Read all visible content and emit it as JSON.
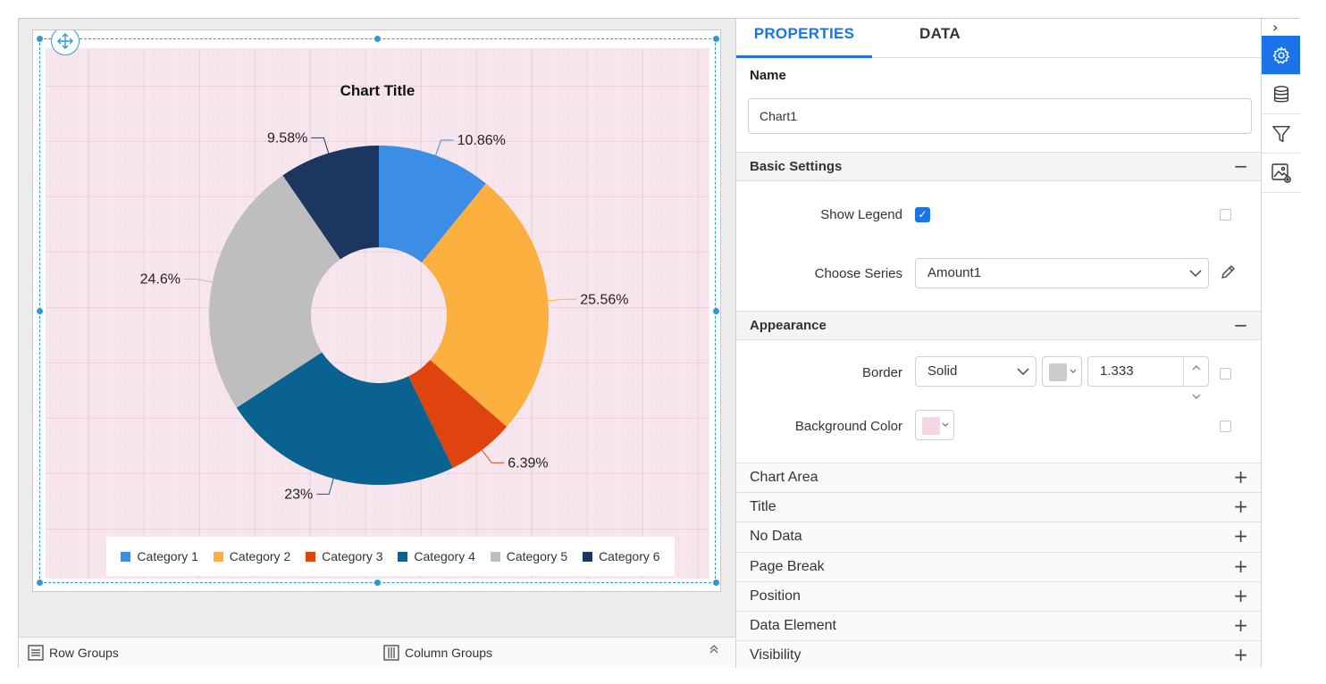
{
  "chart": {
    "title": "Chart Title",
    "move_icon": "move-arrows-icon"
  },
  "chart_data": {
    "type": "pie",
    "title": "Chart Title",
    "donut": true,
    "categories": [
      "Category 1",
      "Category 2",
      "Category 3",
      "Category 4",
      "Category 5",
      "Category 6"
    ],
    "values": [
      10.86,
      25.56,
      6.39,
      23,
      24.6,
      9.58
    ],
    "labels": [
      "10.86%",
      "25.56%",
      "6.39%",
      "23%",
      "24.6%",
      "9.58%"
    ],
    "colors": [
      "#3b8de6",
      "#fbb040",
      "#e0440e",
      "#0a6290",
      "#bebebe",
      "#1b365f"
    ],
    "legend_position": "bottom"
  },
  "bottom_bar": {
    "row_groups": "Row Groups",
    "column_groups": "Column Groups",
    "row_icon": "list-icon",
    "column_icon": "columns-icon",
    "collapse_icon": "double-chevron-up-icon"
  },
  "panel": {
    "tabs": [
      "PROPERTIES",
      "DATA"
    ],
    "name_label": "Name",
    "name_value": "Chart1",
    "basic_settings": {
      "title": "Basic Settings",
      "toggle": "−",
      "show_legend_label": "Show Legend",
      "show_legend_checked": true,
      "choose_series_label": "Choose Series",
      "choose_series_value": "Amount1"
    },
    "appearance": {
      "title": "Appearance",
      "toggle": "−",
      "border_label": "Border",
      "border_style": "Solid",
      "border_color": "#cccccc",
      "border_width": "1.333",
      "background_label": "Background Color",
      "background_color": "#f3d7e7"
    },
    "collapsed_sections": [
      {
        "title": "Chart Area",
        "toggle": "+"
      },
      {
        "title": "Title",
        "toggle": "+"
      },
      {
        "title": "No Data",
        "toggle": "+"
      },
      {
        "title": "Page Break",
        "toggle": "+"
      },
      {
        "title": "Position",
        "toggle": "+"
      },
      {
        "title": "Data Element",
        "toggle": "+"
      },
      {
        "title": "Visibility",
        "toggle": "+"
      }
    ]
  },
  "rail": {
    "collapse": "›",
    "icons": [
      "gear-icon",
      "database-icon",
      "filter-icon",
      "image-settings-icon"
    ]
  },
  "colors": {
    "accent": "#1a73e8",
    "selection": "#2a9bd8",
    "chart_background": "#f8e6ef"
  }
}
